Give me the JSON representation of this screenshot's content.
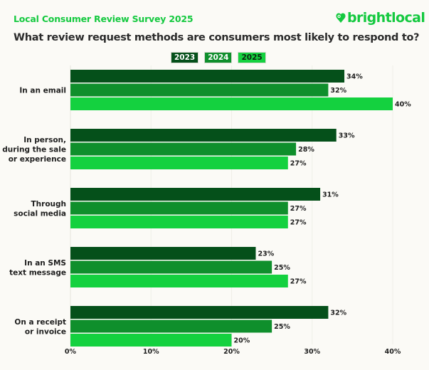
{
  "header": {
    "survey_title": "Local Consumer Review Survey 2025",
    "question": "What review request methods are consumers most likely to respond to?",
    "brand": "brightlocal",
    "brand_icon": "heart-map-pin-icon"
  },
  "colors": {
    "brand": "#14c93f",
    "2023": "#05501a",
    "2024": "#0f8f2c",
    "2025": "#14d13f"
  },
  "chart_data": {
    "type": "bar",
    "orientation": "horizontal",
    "title": "What review request methods are consumers most likely to respond to?",
    "subtitle": "Local Consumer Review Survey 2025",
    "categories": [
      [
        "In an email"
      ],
      [
        "In person,",
        "during the sale",
        "or experience"
      ],
      [
        "Through",
        "social media"
      ],
      [
        "In an SMS",
        "text message"
      ],
      [
        "On a receipt",
        "or invoice"
      ]
    ],
    "series": [
      {
        "name": "2023",
        "values": [
          34,
          33,
          31,
          23,
          32
        ]
      },
      {
        "name": "2024",
        "values": [
          32,
          28,
          27,
          25,
          25
        ]
      },
      {
        "name": "2025",
        "values": [
          40,
          27,
          27,
          27,
          20
        ]
      }
    ],
    "value_suffix": "%",
    "xlabel": "",
    "ylabel": "",
    "xlim": [
      0,
      40
    ],
    "xticks": [
      0,
      10,
      20,
      30,
      40
    ],
    "xtick_labels": [
      "0%",
      "10%",
      "20%",
      "30%",
      "40%"
    ],
    "grid": true,
    "legend_position": "top-center"
  }
}
